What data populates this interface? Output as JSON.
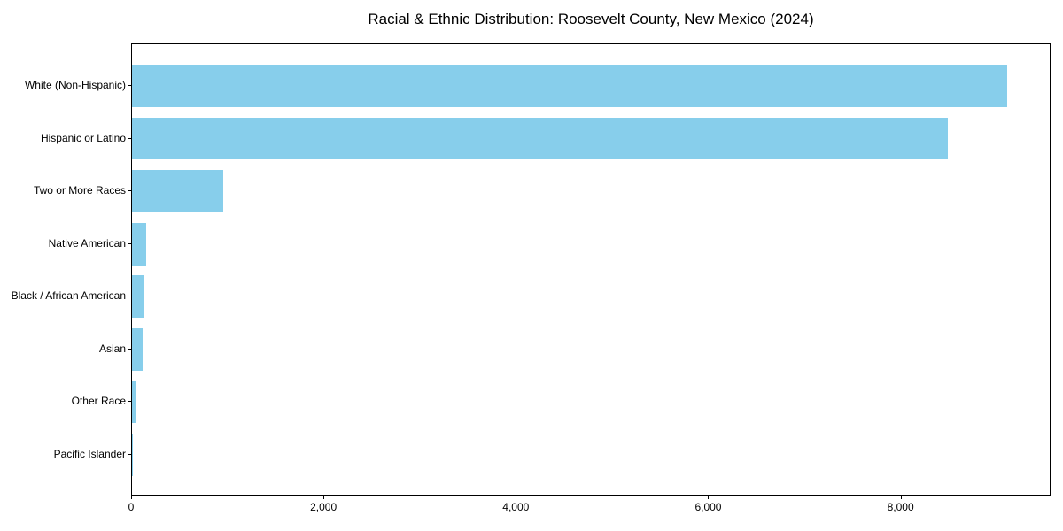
{
  "chart_data": {
    "type": "bar",
    "orientation": "horizontal",
    "title": "Racial & Ethnic Distribution: Roosevelt County, New Mexico (2024)",
    "categories": [
      "White (Non-Hispanic)",
      "Hispanic or Latino",
      "Two or More Races",
      "Native American",
      "Black / African American",
      "Asian",
      "Other Race",
      "Pacific Islander"
    ],
    "values": [
      9100,
      8480,
      945,
      150,
      130,
      110,
      45,
      10
    ],
    "xlabel": "",
    "ylabel": "",
    "xlim": [
      0,
      9560
    ],
    "x_ticks": [
      0,
      2000,
      4000,
      6000,
      8000
    ],
    "x_tick_labels": [
      "0",
      "2,000",
      "4,000",
      "6,000",
      "8,000"
    ],
    "bar_color": "#87CEEB",
    "spine_color": "#000000",
    "grid": false,
    "legend": null,
    "bar_thickness_fraction": 0.8,
    "outer_margin_units": 0.29
  }
}
